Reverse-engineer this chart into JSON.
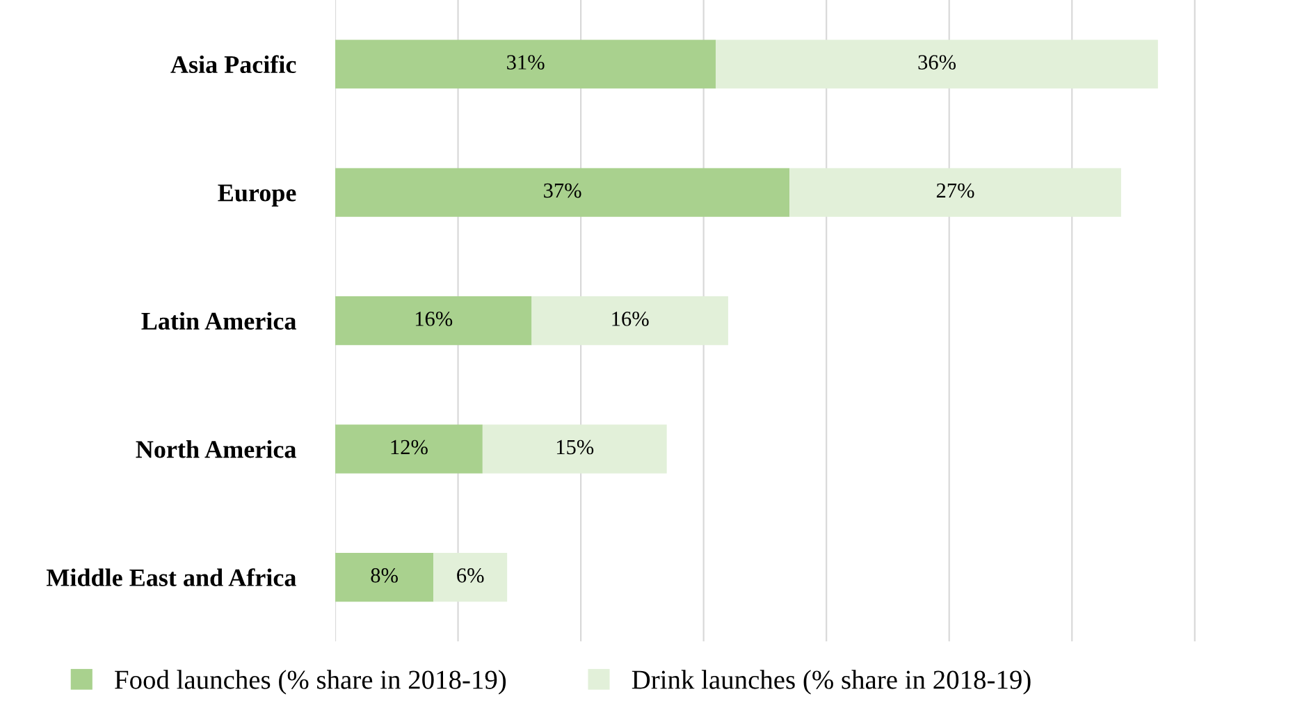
{
  "chart_data": {
    "type": "bar",
    "orientation": "horizontal",
    "stacked": true,
    "categories": [
      "Asia Pacific",
      "Europe",
      "Latin America",
      "North America",
      "Middle East and Africa"
    ],
    "series": [
      {
        "name": "Food launches (% share in 2018-19)",
        "color": "#a9d18e",
        "values": [
          31,
          37,
          16,
          12,
          8
        ],
        "value_labels": [
          "31%",
          "37%",
          "16%",
          "12%",
          "8%"
        ]
      },
      {
        "name": "Drink launches (% share in 2018-19)",
        "color": "#e2f0d9",
        "values": [
          36,
          27,
          16,
          15,
          6
        ],
        "value_labels": [
          "36%",
          "27%",
          "16%",
          "15%",
          "6%"
        ]
      }
    ],
    "tick_labels": "y",
    "grid": "x",
    "legend": "bottom"
  }
}
